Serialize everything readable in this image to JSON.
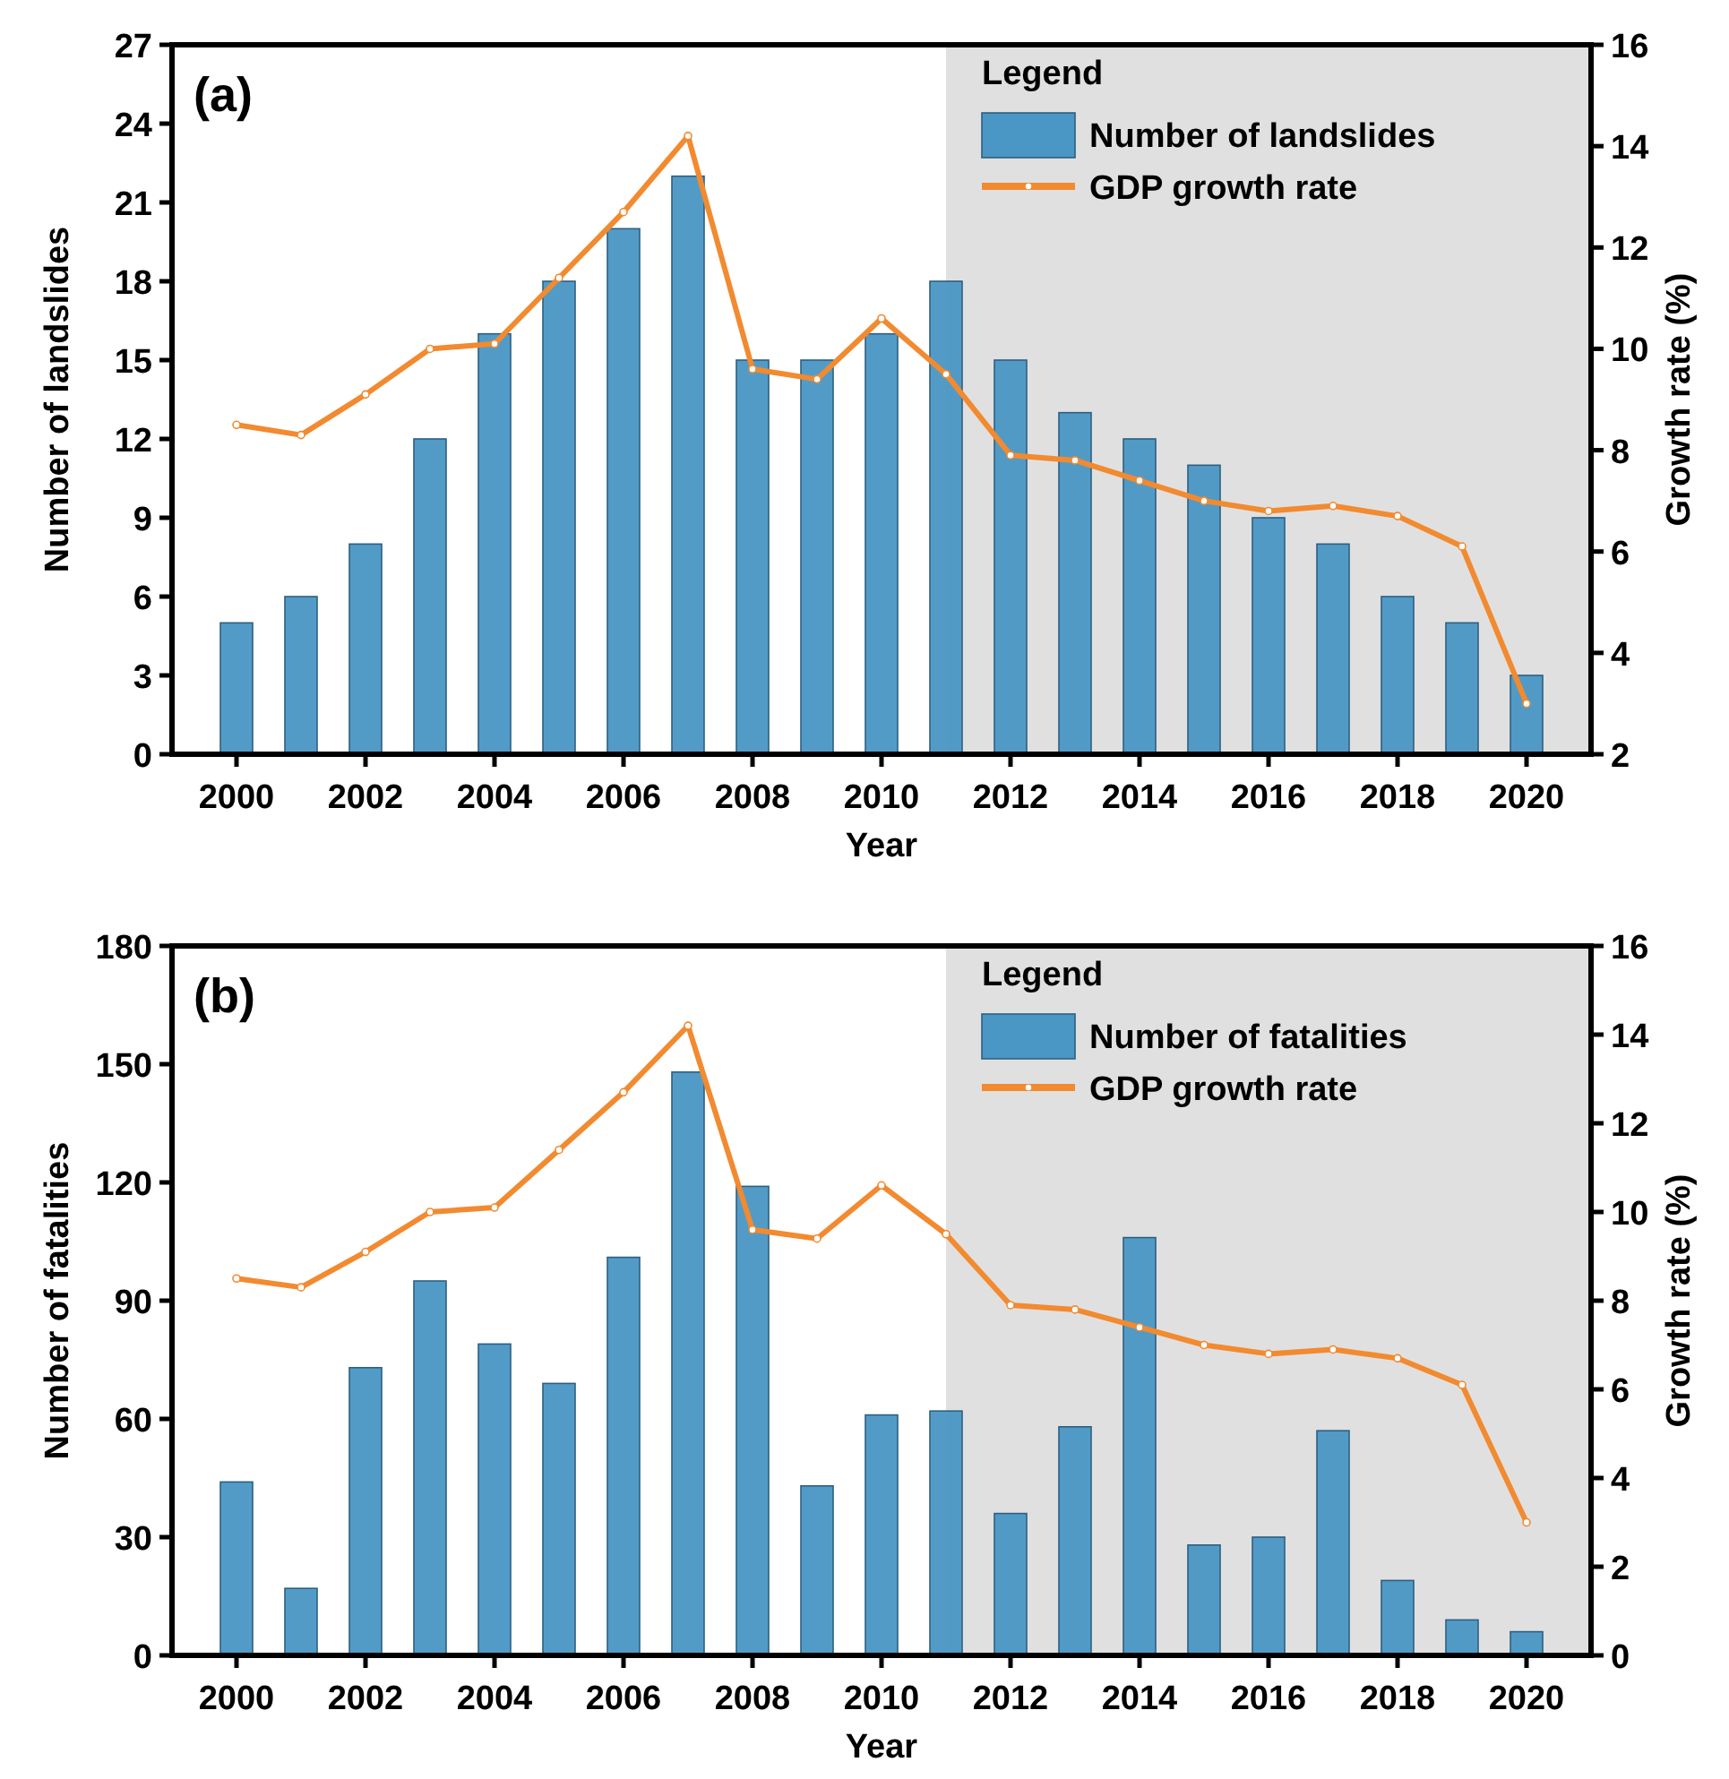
{
  "chart_data": [
    {
      "type": "bar",
      "title": "(a)",
      "xlabel": "Year",
      "ylabel": "Number of landslides",
      "y2label": "Growth rate (%)",
      "legend_title": "Legend",
      "legend": "top right",
      "x": [
        2000,
        2001,
        2002,
        2003,
        2004,
        2005,
        2006,
        2007,
        2008,
        2009,
        2010,
        2011,
        2012,
        2013,
        2014,
        2015,
        2016,
        2017,
        2018,
        2019,
        2020
      ],
      "series": [
        {
          "name": "Number of landslides",
          "color": "#4a96c4",
          "values": [
            5,
            6,
            8,
            12,
            16,
            18,
            20,
            22,
            15,
            15,
            16,
            18,
            15,
            13,
            12,
            11,
            9,
            8,
            6,
            5,
            3
          ]
        },
        {
          "name": "GDP growth rate",
          "type": "line",
          "axis": "y2",
          "color": "#f28a30",
          "marker": "circle",
          "values": [
            8.5,
            8.3,
            9.1,
            10.0,
            10.1,
            11.4,
            12.7,
            14.2,
            9.6,
            9.4,
            10.6,
            9.5,
            7.9,
            7.8,
            7.4,
            7.0,
            6.8,
            6.9,
            6.7,
            6.1,
            3.0
          ]
        }
      ],
      "xlim": [
        1999,
        2021
      ],
      "xticks": [
        2000,
        2002,
        2004,
        2006,
        2008,
        2010,
        2012,
        2014,
        2016,
        2018,
        2020
      ],
      "ylim": [
        0,
        27
      ],
      "yticks": [
        0,
        3,
        6,
        9,
        12,
        15,
        18,
        21,
        24,
        27
      ],
      "y2lim": [
        2,
        16
      ],
      "y2ticks": [
        2,
        4,
        6,
        8,
        10,
        12,
        14,
        16
      ],
      "bands": [
        {
          "axis": "x",
          "from": 2011,
          "to": 2021,
          "color": "#e0e0e0"
        }
      ]
    },
    {
      "type": "bar",
      "title": "(b)",
      "xlabel": "Year",
      "ylabel": "Number of fatalities",
      "y2label": "Growth rate (%)",
      "legend_title": "Legend",
      "legend": "top right",
      "x": [
        2000,
        2001,
        2002,
        2003,
        2004,
        2005,
        2006,
        2007,
        2008,
        2009,
        2010,
        2011,
        2012,
        2013,
        2014,
        2015,
        2016,
        2017,
        2018,
        2019,
        2020
      ],
      "series": [
        {
          "name": "Number of fatalities",
          "color": "#4a96c4",
          "values": [
            44,
            17,
            73,
            95,
            79,
            69,
            101,
            148,
            119,
            43,
            61,
            62,
            36,
            58,
            106,
            28,
            30,
            57,
            19,
            9,
            6
          ]
        },
        {
          "name": "GDP growth rate",
          "type": "line",
          "axis": "y2",
          "color": "#f28a30",
          "marker": "circle",
          "values": [
            8.5,
            8.3,
            9.1,
            10.0,
            10.1,
            11.4,
            12.7,
            14.2,
            9.6,
            9.4,
            10.6,
            9.5,
            7.9,
            7.8,
            7.4,
            7.0,
            6.8,
            6.9,
            6.7,
            6.1,
            3.0
          ]
        }
      ],
      "xlim": [
        1999,
        2021
      ],
      "xticks": [
        2000,
        2002,
        2004,
        2006,
        2008,
        2010,
        2012,
        2014,
        2016,
        2018,
        2020
      ],
      "ylim": [
        0,
        180
      ],
      "yticks": [
        0,
        30,
        60,
        90,
        120,
        150,
        180
      ],
      "y2lim": [
        0,
        16
      ],
      "y2ticks": [
        0,
        2,
        4,
        6,
        8,
        10,
        12,
        14,
        16
      ],
      "bands": [
        {
          "axis": "x",
          "from": 2011,
          "to": 2021,
          "color": "#e0e0e0"
        }
      ]
    }
  ]
}
